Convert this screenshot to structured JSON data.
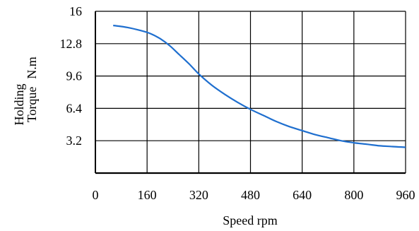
{
  "chart_data": {
    "type": "line",
    "title": "",
    "xlabel": "Speed rpm",
    "ylabel_lines": [
      "Holding",
      "Torque"
    ],
    "ylabel_unit": "N.m",
    "xlim": [
      0,
      960
    ],
    "ylim": [
      0,
      16
    ],
    "x_ticks": [
      "0",
      "160",
      "320",
      "480",
      "640",
      "800",
      "960"
    ],
    "y_ticks": [
      "16",
      "12.8",
      "9.6",
      "6.4",
      "3.2"
    ],
    "grid": true,
    "legend": "none",
    "series": [
      {
        "color": "#1f6fcf",
        "points": [
          [
            55,
            14.6
          ],
          [
            100,
            14.4
          ],
          [
            140,
            14.1
          ],
          [
            170,
            13.8
          ],
          [
            200,
            13.3
          ],
          [
            230,
            12.6
          ],
          [
            260,
            11.7
          ],
          [
            290,
            10.8
          ],
          [
            320,
            9.8
          ],
          [
            360,
            8.7
          ],
          [
            400,
            7.8
          ],
          [
            440,
            7.0
          ],
          [
            480,
            6.3
          ],
          [
            520,
            5.7
          ],
          [
            560,
            5.1
          ],
          [
            600,
            4.6
          ],
          [
            640,
            4.2
          ],
          [
            680,
            3.8
          ],
          [
            720,
            3.5
          ],
          [
            760,
            3.2
          ],
          [
            800,
            3.0
          ],
          [
            840,
            2.85
          ],
          [
            880,
            2.7
          ],
          [
            920,
            2.62
          ],
          [
            960,
            2.55
          ]
        ]
      }
    ]
  }
}
